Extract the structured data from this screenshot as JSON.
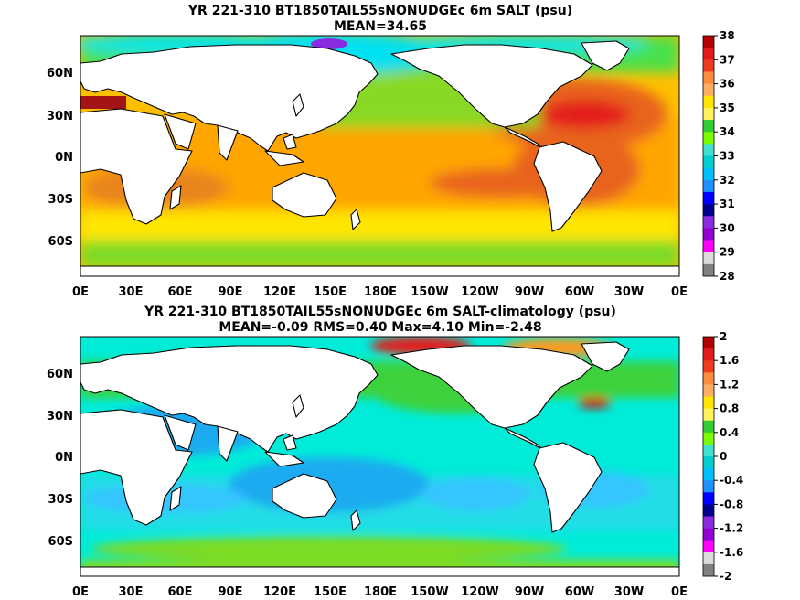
{
  "panels": [
    {
      "title": "YR 221-310 BT1850TAIL55sNONUDGEc 6m SALT (psu)",
      "subtitle": "MEAN=34.65",
      "lat_labels": [
        "60N",
        "30N",
        "0N",
        "30S",
        "60S"
      ],
      "lon_labels": [
        "0E",
        "30E",
        "60E",
        "90E",
        "120E",
        "150E",
        "180E",
        "150W",
        "120W",
        "90W",
        "60W",
        "30W",
        "0E"
      ],
      "colorbar": {
        "labels": [
          "38",
          "37",
          "36",
          "35",
          "34",
          "33",
          "32",
          "31",
          "30",
          "29",
          "28"
        ],
        "colors": [
          "#b30000",
          "#e31a1c",
          "#f03b20",
          "#fd8d3c",
          "#fdae61",
          "#ffe600",
          "#fff35c",
          "#32cd32",
          "#7cfc00",
          "#40e0d0",
          "#00ced1",
          "#00bfff",
          "#1e90ff",
          "#0000ff",
          "#00008b",
          "#8a2be2",
          "#9400d3",
          "#ff00ff",
          "#dcdcdc",
          "#808080"
        ]
      }
    },
    {
      "title": "YR 221-310 BT1850TAIL55sNONUDGEc 6m SALT-climatology (psu)",
      "subtitle": "MEAN=-0.09   RMS=0.40   Max=4.10   Min=-2.48",
      "lat_labels": [
        "60N",
        "30N",
        "0N",
        "30S",
        "60S"
      ],
      "lon_labels": [
        "0E",
        "30E",
        "60E",
        "90E",
        "120E",
        "150E",
        "180E",
        "150W",
        "120W",
        "90W",
        "60W",
        "30W",
        "0E"
      ],
      "colorbar": {
        "labels": [
          "2",
          "1.6",
          "1.2",
          "0.8",
          "0.4",
          "0",
          "-0.4",
          "-0.8",
          "-1.2",
          "-1.6",
          "-2"
        ],
        "colors": [
          "#b30000",
          "#e31a1c",
          "#f03b20",
          "#fd8d3c",
          "#fdae61",
          "#ffe600",
          "#fff35c",
          "#32cd32",
          "#7cfc00",
          "#40e0d0",
          "#00ced1",
          "#00bfff",
          "#1e90ff",
          "#0000ff",
          "#00008b",
          "#8a2be2",
          "#9400d3",
          "#ff00ff",
          "#dcdcdc",
          "#808080"
        ]
      }
    }
  ]
}
